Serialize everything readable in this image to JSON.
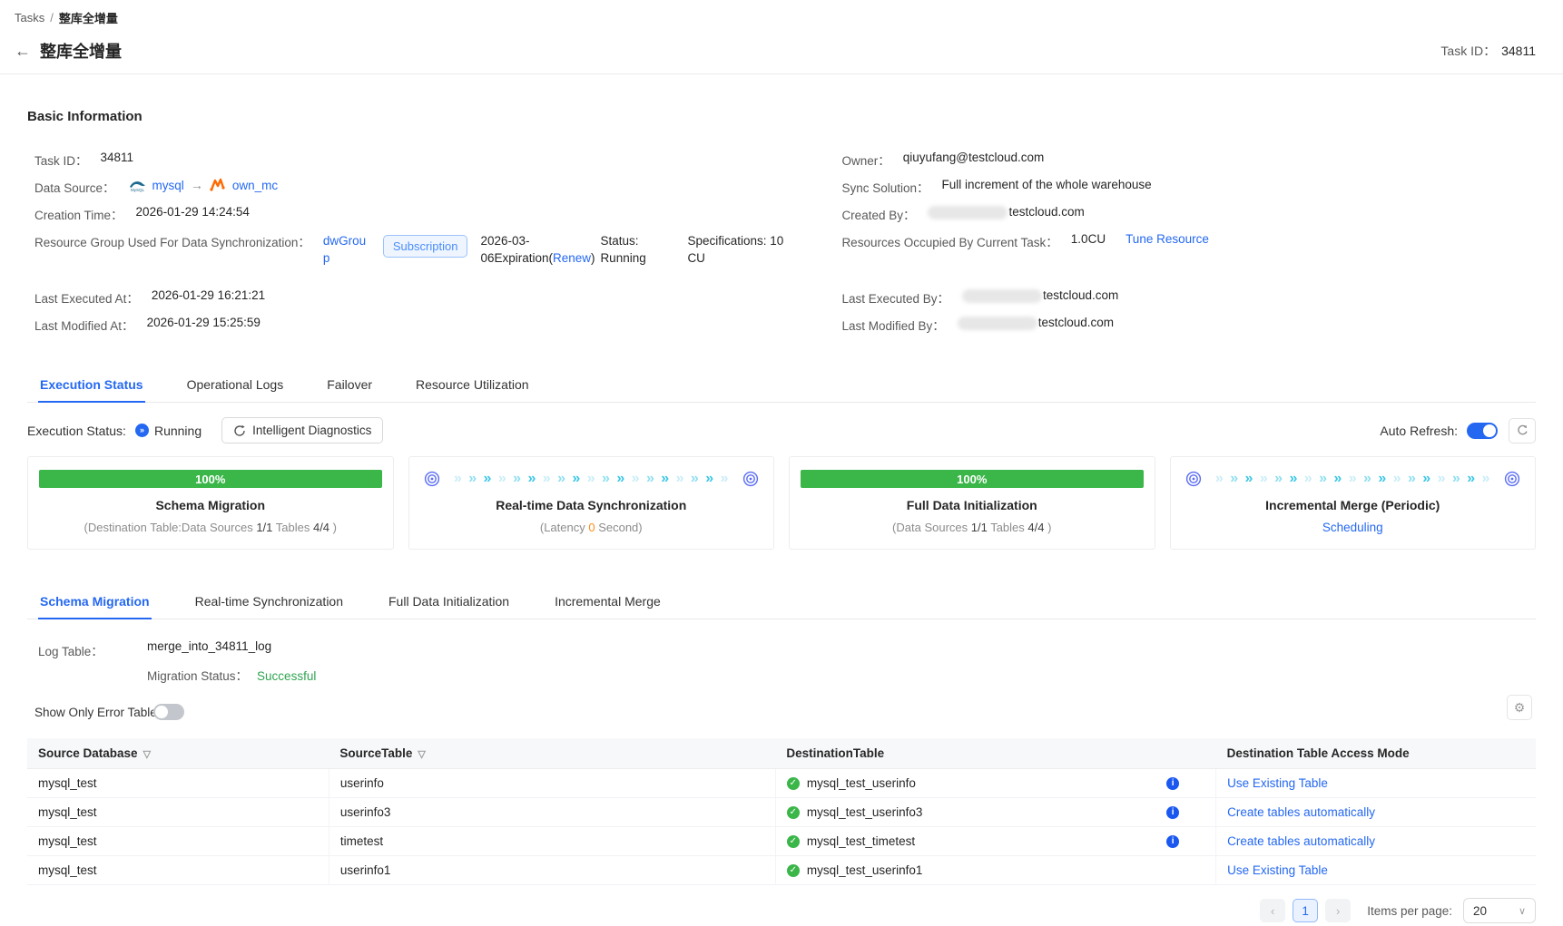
{
  "header": {
    "breadcrumb_root": "Tasks",
    "breadcrumb_sep": "/",
    "breadcrumb_current": "整库全增量",
    "back_arrow": "←",
    "title": "整库全增量",
    "task_id_label": "Task ID：",
    "task_id": "34811"
  },
  "basic_info": {
    "heading": "Basic Information",
    "left": {
      "task_id_label": "Task ID：",
      "task_id": "34811",
      "data_source_label": "Data Source：",
      "source_name": "mysql",
      "arrow": "→",
      "target_name": "own_mc",
      "creation_label": "Creation Time：",
      "creation_time": "2026-01-29 14:24:54",
      "resource_group_label": "Resource Group Used For Data Synchronization：",
      "resource_group_link": "dwGroup",
      "billing_badge": "Subscription",
      "expiration_prefix": "2026-03-06Expiration(",
      "renew_link": "Renew",
      "expiration_suffix": ")",
      "status_text": "Status: Running",
      "spec_text": "Specifications: 10 CU",
      "last_executed_label": "Last Executed At：",
      "last_executed": "2026-01-29 16:21:21",
      "last_modified_label": "Last Modified At：",
      "last_modified": "2026-01-29 15:25:59"
    },
    "right": {
      "owner_label": "Owner：",
      "owner": "qiuyufang@testcloud.com",
      "sync_label": "Sync Solution：",
      "sync_solution": "Full increment of the whole warehouse",
      "created_by_label": "Created By：",
      "created_by_suffix": "testcloud.com",
      "resources_label": "Resources Occupied By Current Task：",
      "resources_value": "1.0CU",
      "tune_link": "Tune Resource",
      "last_executed_by_label": "Last Executed By：",
      "last_executed_by_suffix": "testcloud.com",
      "last_modified_by_label": "Last Modified By：",
      "last_modified_by_suffix": "testcloud.com"
    }
  },
  "tabs_main": {
    "t0": "Execution Status",
    "t1": "Operational Logs",
    "t2": "Failover",
    "t3": "Resource Utilization"
  },
  "execution": {
    "status_label": "Execution Status:",
    "status_value": "Running",
    "diagnostics_button": "Intelligent Diagnostics",
    "auto_refresh_label": "Auto Refresh:"
  },
  "cards": {
    "c0": {
      "percent": "100%",
      "title": "Schema Migration",
      "sub_prefix": "(Destination Table:Data Sources ",
      "n1": "1/1",
      "mid": " Tables ",
      "n2": "4/4",
      "close": " )"
    },
    "c1": {
      "title": "Real-time Data Synchronization",
      "sub_prefix": "(Latency ",
      "highlight": "0",
      "sub_suffix": " Second)"
    },
    "c2": {
      "percent": "100%",
      "title": "Full Data Initialization",
      "sub_prefix": "(Data Sources ",
      "n1": "1/1",
      "mid": " Tables ",
      "n2": "4/4",
      "close": " )"
    },
    "c3": {
      "title": "Incremental Merge (Periodic)",
      "link": "Scheduling"
    }
  },
  "tabs_sub": {
    "t0": "Schema Migration",
    "t1": "Real-time Synchronization",
    "t2": "Full Data Initialization",
    "t3": "Incremental Merge"
  },
  "detail": {
    "log_table_label": "Log Table：",
    "log_table": "merge_into_34811_log",
    "migration_status_label": "Migration Status：",
    "migration_status": "Successful",
    "error_toggle_label": "Show Only Error Table"
  },
  "table": {
    "headers": {
      "h0": "Source Database",
      "h1": "SourceTable",
      "h2": "DestinationTable",
      "h3": "Destination Table Access Mode"
    },
    "rows": [
      {
        "source_db": "mysql_test",
        "source_table": "userinfo",
        "dest_table": "mysql_test_userinfo",
        "access_mode": "Use Existing Table"
      },
      {
        "source_db": "mysql_test",
        "source_table": "userinfo3",
        "dest_table": "mysql_test_userinfo3",
        "access_mode": "Create tables automatically"
      },
      {
        "source_db": "mysql_test",
        "source_table": "timetest",
        "dest_table": "mysql_test_timetest",
        "access_mode": "Create tables automatically"
      },
      {
        "source_db": "mysql_test",
        "source_table": "userinfo1",
        "dest_table": "mysql_test_userinfo1",
        "access_mode": "Use Existing Table"
      }
    ]
  },
  "pagination": {
    "prev": "‹",
    "current_page": "1",
    "next": "›",
    "items_per_page_label": "Items per page:",
    "page_size": "20"
  },
  "colors": {
    "accent_blue": "#2468f2",
    "success_green": "#3bb649",
    "status_green_text": "#30a452",
    "warning_orange": "#ff8d1a",
    "maxcompute_orange": "#ff6a00"
  }
}
